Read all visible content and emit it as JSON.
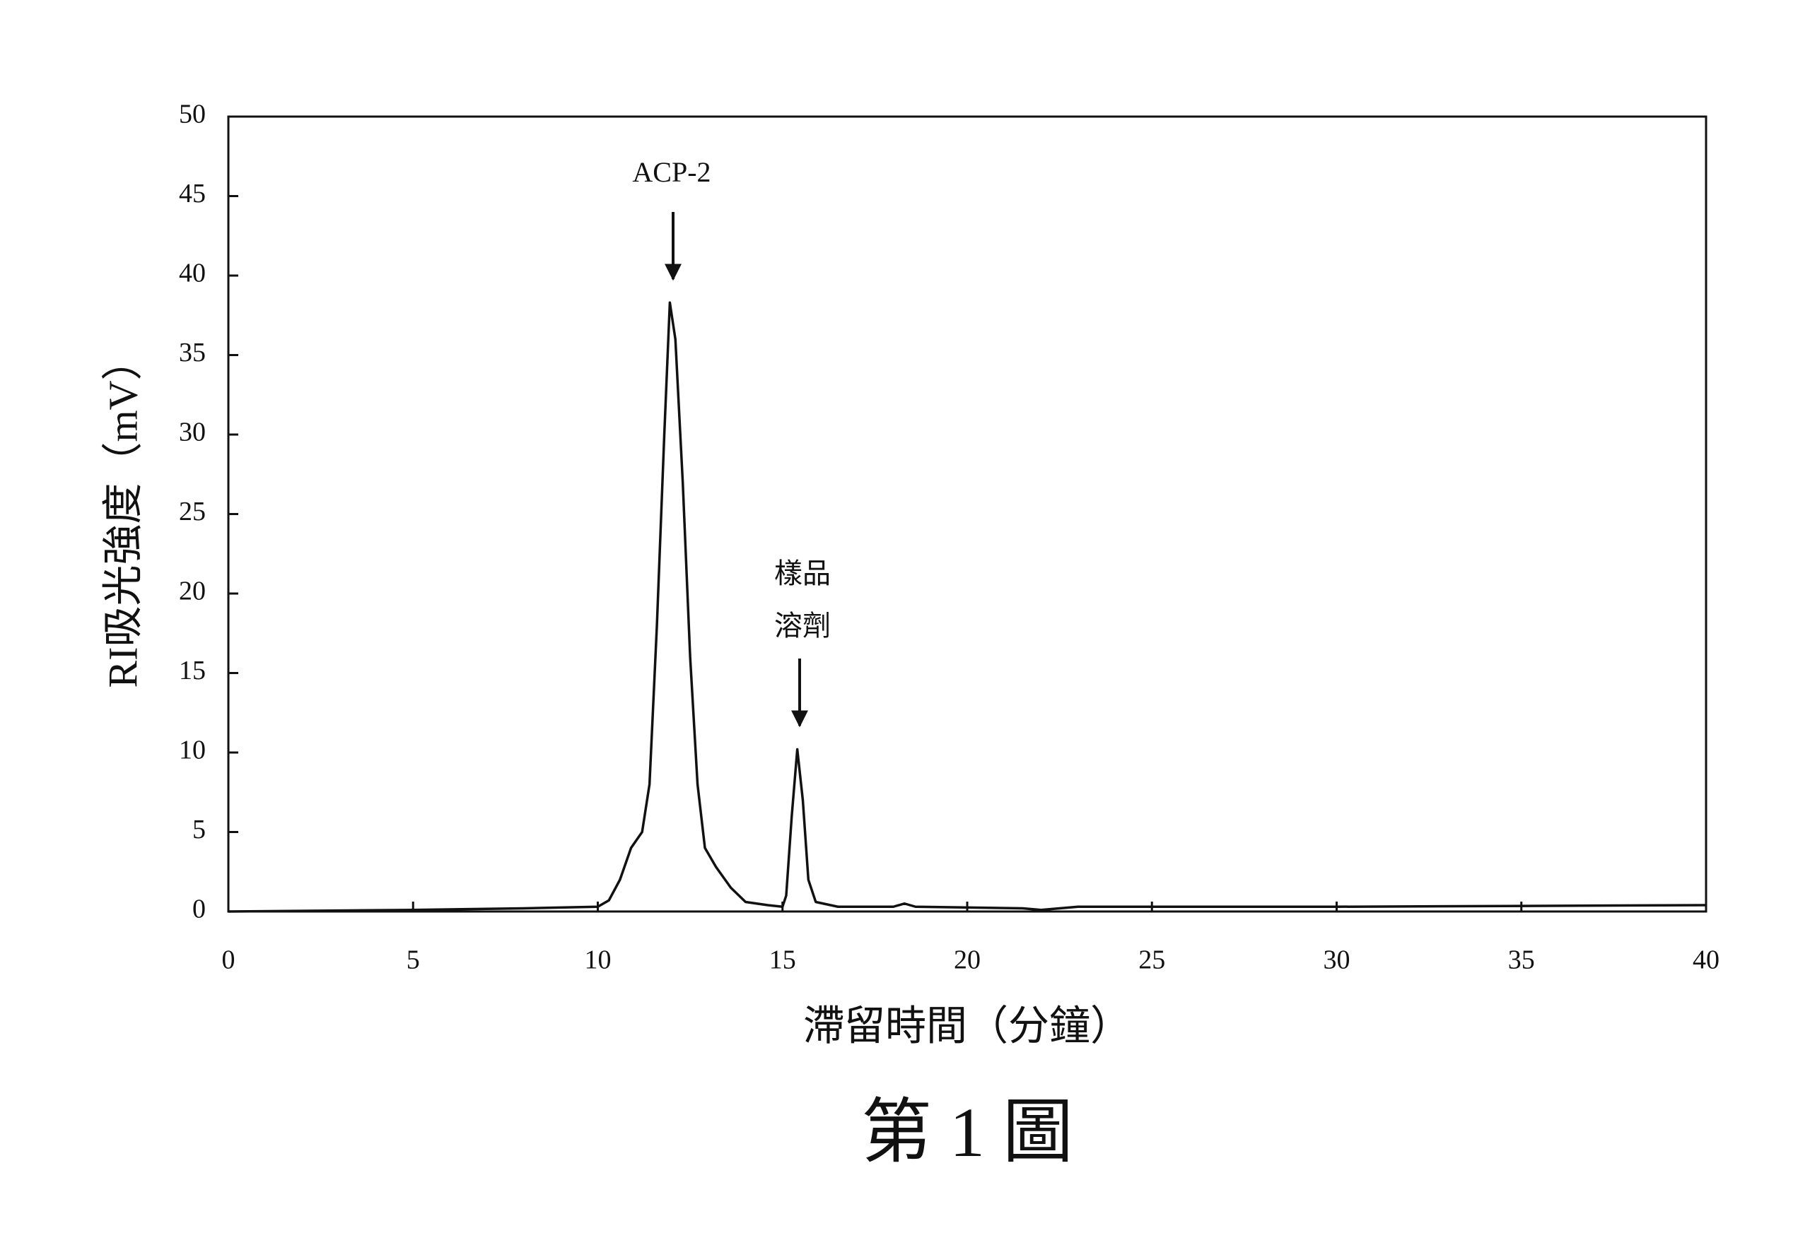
{
  "chart_data": {
    "type": "line",
    "caption": "第 1 圖",
    "xlabel": "滯留時間（分鐘）",
    "ylabel": "RI吸光強度（mV）",
    "annotations": [
      "ACP-2",
      "樣品",
      "溶劑"
    ],
    "color": "#111111",
    "xlim": [
      0,
      40
    ],
    "ylim": [
      0,
      50
    ],
    "xticks": [
      0,
      5,
      10,
      15,
      20,
      25,
      30,
      35,
      40
    ],
    "yticks": [
      0,
      5,
      10,
      15,
      20,
      25,
      30,
      35,
      40,
      45,
      50
    ],
    "x": [
      0,
      5,
      8,
      10,
      10.3,
      10.6,
      10.9,
      11.2,
      11.4,
      11.6,
      11.8,
      11.95,
      12.1,
      12.3,
      12.5,
      12.7,
      12.9,
      13.2,
      13.6,
      14,
      14.6,
      15,
      15.1,
      15.25,
      15.4,
      15.55,
      15.7,
      15.9,
      16.5,
      18,
      18.3,
      18.6,
      21.5,
      22,
      23,
      30,
      40
    ],
    "values": [
      0,
      0.1,
      0.2,
      0.3,
      0.7,
      2,
      4,
      5,
      8,
      18,
      30,
      38.3,
      36,
      27,
      16,
      8,
      4,
      2.8,
      1.5,
      0.6,
      0.4,
      0.3,
      1,
      6,
      10.2,
      7,
      2,
      0.6,
      0.3,
      0.3,
      0.5,
      0.3,
      0.2,
      0.1,
      0.3,
      0.3,
      0.4
    ]
  }
}
